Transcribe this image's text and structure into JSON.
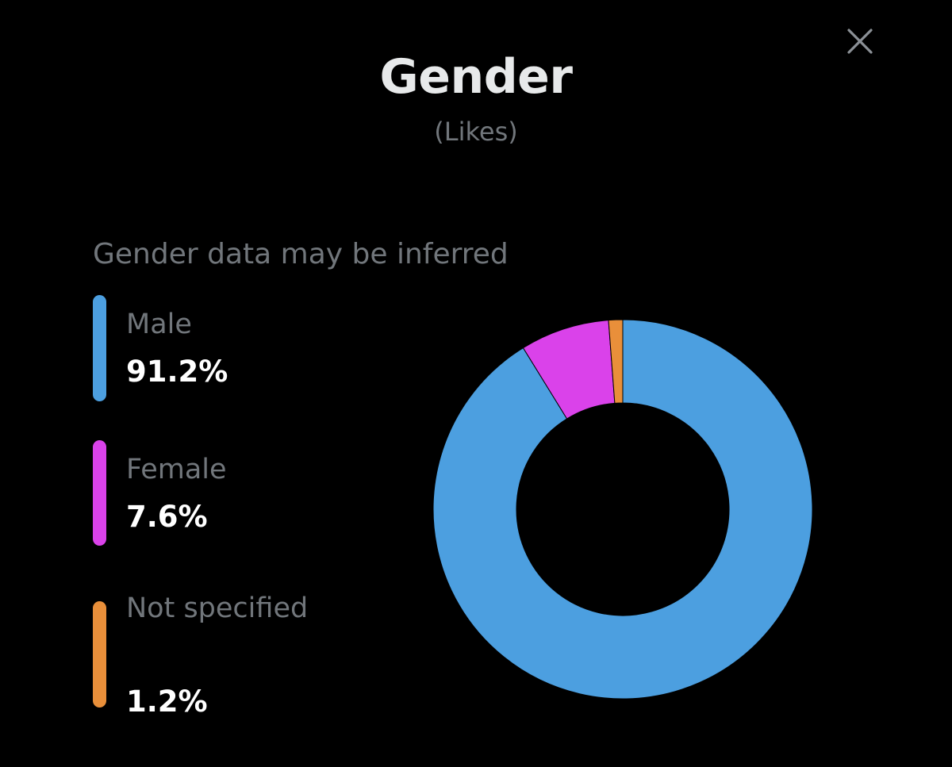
{
  "header": {
    "title": "Gender",
    "subtitle": "(Likes)",
    "close_icon": "close-icon"
  },
  "note": "Gender data may be inferred",
  "legend": [
    {
      "label": "Male",
      "value": "91.2%",
      "color": "#4c9fe0"
    },
    {
      "label": "Female",
      "value": "7.6%",
      "color": "#da42ea"
    },
    {
      "label": "Not specified",
      "value": "1.2%",
      "color": "#e98f3a"
    }
  ],
  "chart_data": {
    "type": "pie",
    "title": "Gender",
    "subtitle": "(Likes)",
    "donut": true,
    "categories": [
      "Male",
      "Female",
      "Not specified"
    ],
    "values": [
      91.2,
      7.6,
      1.2
    ],
    "colors": [
      "#4c9fe0",
      "#da42ea",
      "#e98f3a"
    ],
    "legend_position": "left",
    "start": "top",
    "direction": "clockwise"
  }
}
